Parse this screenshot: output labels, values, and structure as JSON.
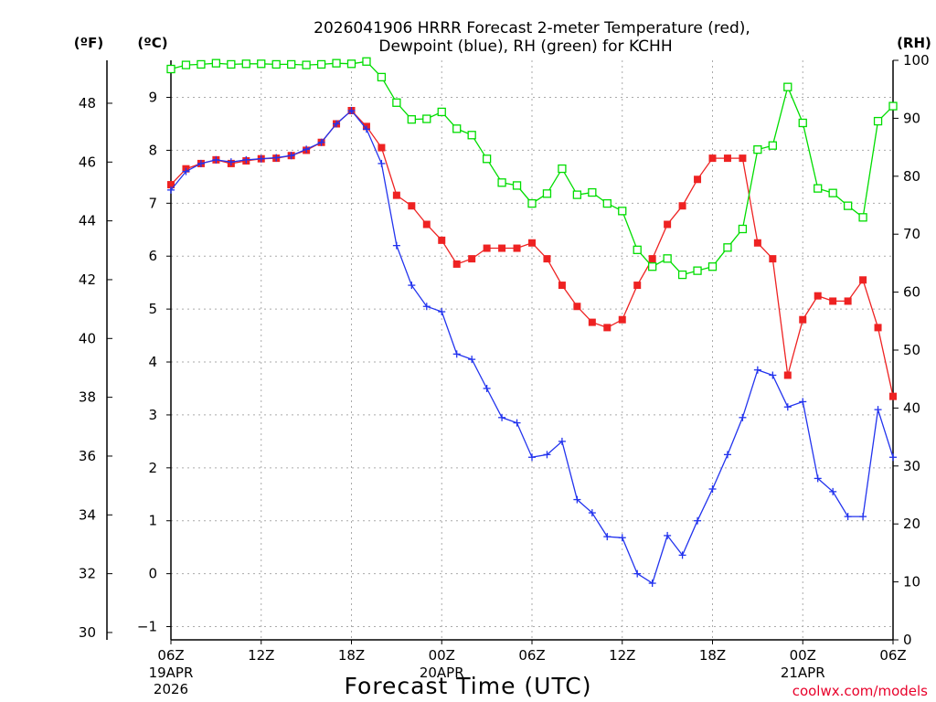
{
  "chart_data": {
    "type": "line",
    "title_line1": "2026041906 HRRR Forecast 2-meter Temperature (red),",
    "title_line2": "Dewpoint (blue), RH (green) for KCHH",
    "left_outer_unit": "(ºF)",
    "left_inner_unit": "(ºC)",
    "right_unit": "(RH)",
    "xlabel": "Forecast Time (UTC)",
    "credit": "coolwx.com/models",
    "x_range_hours": [
      0,
      48
    ],
    "x_ticks": [
      {
        "hour": 0,
        "label": "06Z"
      },
      {
        "hour": 6,
        "label": "12Z"
      },
      {
        "hour": 12,
        "label": "18Z"
      },
      {
        "hour": 18,
        "label": "00Z"
      },
      {
        "hour": 24,
        "label": "06Z"
      },
      {
        "hour": 30,
        "label": "12Z"
      },
      {
        "hour": 36,
        "label": "18Z"
      },
      {
        "hour": 42,
        "label": "00Z"
      },
      {
        "hour": 48,
        "label": "06Z"
      }
    ],
    "date_labels": [
      {
        "hour": 0,
        "lines": [
          "19APR",
          "2026"
        ]
      },
      {
        "hour": 18,
        "lines": [
          "20APR"
        ]
      },
      {
        "hour": 42,
        "lines": [
          "21APR"
        ]
      }
    ],
    "celsius_range": [
      -1.25,
      9.7
    ],
    "celsius_ticks": [
      -1,
      0,
      1,
      2,
      3,
      4,
      5,
      6,
      7,
      8,
      9
    ],
    "fahrenheit_ticks": [
      30,
      32,
      34,
      36,
      38,
      40,
      42,
      44,
      46,
      48
    ],
    "rh_range": [
      0,
      100
    ],
    "rh_ticks": [
      0,
      10,
      20,
      30,
      40,
      50,
      60,
      70,
      80,
      90,
      100
    ],
    "series": [
      {
        "name": "2-meter Temperature (°C)",
        "color": "#ee2222",
        "axis": "celsius",
        "marker": "square-filled",
        "x": [
          0,
          1,
          2,
          3,
          4,
          5,
          6,
          7,
          8,
          9,
          10,
          11,
          12,
          13,
          14,
          15,
          16,
          17,
          18,
          19,
          20,
          21,
          22,
          23,
          24,
          25,
          26,
          27,
          28,
          29,
          30,
          31,
          32,
          33,
          34,
          35,
          36,
          37,
          38,
          39,
          40,
          41,
          42,
          43,
          44,
          45,
          46,
          47,
          48
        ],
        "values": [
          7.35,
          7.65,
          7.75,
          7.82,
          7.75,
          7.8,
          7.84,
          7.85,
          7.9,
          8.0,
          8.15,
          8.5,
          8.75,
          8.45,
          8.05,
          7.15,
          6.95,
          6.6,
          6.3,
          5.85,
          5.95,
          6.15,
          6.15,
          6.15,
          6.25,
          5.95,
          5.45,
          5.05,
          4.75,
          4.65,
          4.8,
          5.45,
          5.95,
          6.6,
          6.95,
          7.45,
          7.85,
          7.85,
          7.85,
          6.25,
          5.95,
          3.75,
          4.8,
          5.25,
          5.15,
          5.15,
          5.55,
          4.65,
          3.35
        ]
      },
      {
        "name": "Dewpoint (°C)",
        "color": "#2233ee",
        "axis": "celsius",
        "marker": "plus",
        "x": [
          0,
          1,
          2,
          3,
          4,
          5,
          6,
          7,
          8,
          9,
          10,
          11,
          12,
          13,
          14,
          15,
          16,
          17,
          18,
          19,
          20,
          21,
          22,
          23,
          24,
          25,
          26,
          27,
          28,
          29,
          30,
          31,
          32,
          33,
          34,
          35,
          36,
          37,
          38,
          39,
          40,
          41,
          42,
          43,
          44,
          45,
          46,
          47,
          48
        ],
        "values": [
          7.25,
          7.6,
          7.75,
          7.82,
          7.78,
          7.82,
          7.84,
          7.86,
          7.9,
          8.02,
          8.15,
          8.5,
          8.75,
          8.4,
          7.75,
          6.2,
          5.45,
          5.05,
          4.95,
          4.15,
          4.05,
          3.5,
          2.95,
          2.85,
          2.2,
          2.25,
          2.5,
          1.4,
          1.15,
          0.7,
          0.68,
          0.0,
          -0.18,
          0.72,
          0.35,
          1.0,
          1.6,
          2.25,
          2.95,
          3.85,
          3.75,
          3.15,
          3.25,
          1.8,
          1.55,
          1.08,
          1.08,
          3.1,
          2.2
        ]
      },
      {
        "name": "RH (%)",
        "color": "#00dd00",
        "axis": "rh",
        "marker": "square-open",
        "x": [
          0,
          1,
          2,
          3,
          4,
          5,
          6,
          7,
          8,
          9,
          10,
          11,
          12,
          13,
          14,
          15,
          16,
          17,
          18,
          19,
          20,
          21,
          22,
          23,
          24,
          25,
          26,
          27,
          28,
          29,
          30,
          31,
          32,
          33,
          34,
          35,
          36,
          37,
          38,
          39,
          40,
          41,
          42,
          43,
          44,
          45,
          46,
          47,
          48
        ],
        "values": [
          98.5,
          99.2,
          99.3,
          99.5,
          99.3,
          99.4,
          99.4,
          99.3,
          99.3,
          99.2,
          99.3,
          99.5,
          99.4,
          99.8,
          97.1,
          92.7,
          89.8,
          89.9,
          91.1,
          88.2,
          87.1,
          83.0,
          78.9,
          78.4,
          75.3,
          77.0,
          81.3,
          76.8,
          77.2,
          75.3,
          74.0,
          67.3,
          64.4,
          65.8,
          63.0,
          63.7,
          64.4,
          67.7,
          70.9,
          84.6,
          85.3,
          95.4,
          89.2,
          77.9,
          77.1,
          74.9,
          72.9,
          89.5,
          92.1
        ]
      }
    ]
  }
}
